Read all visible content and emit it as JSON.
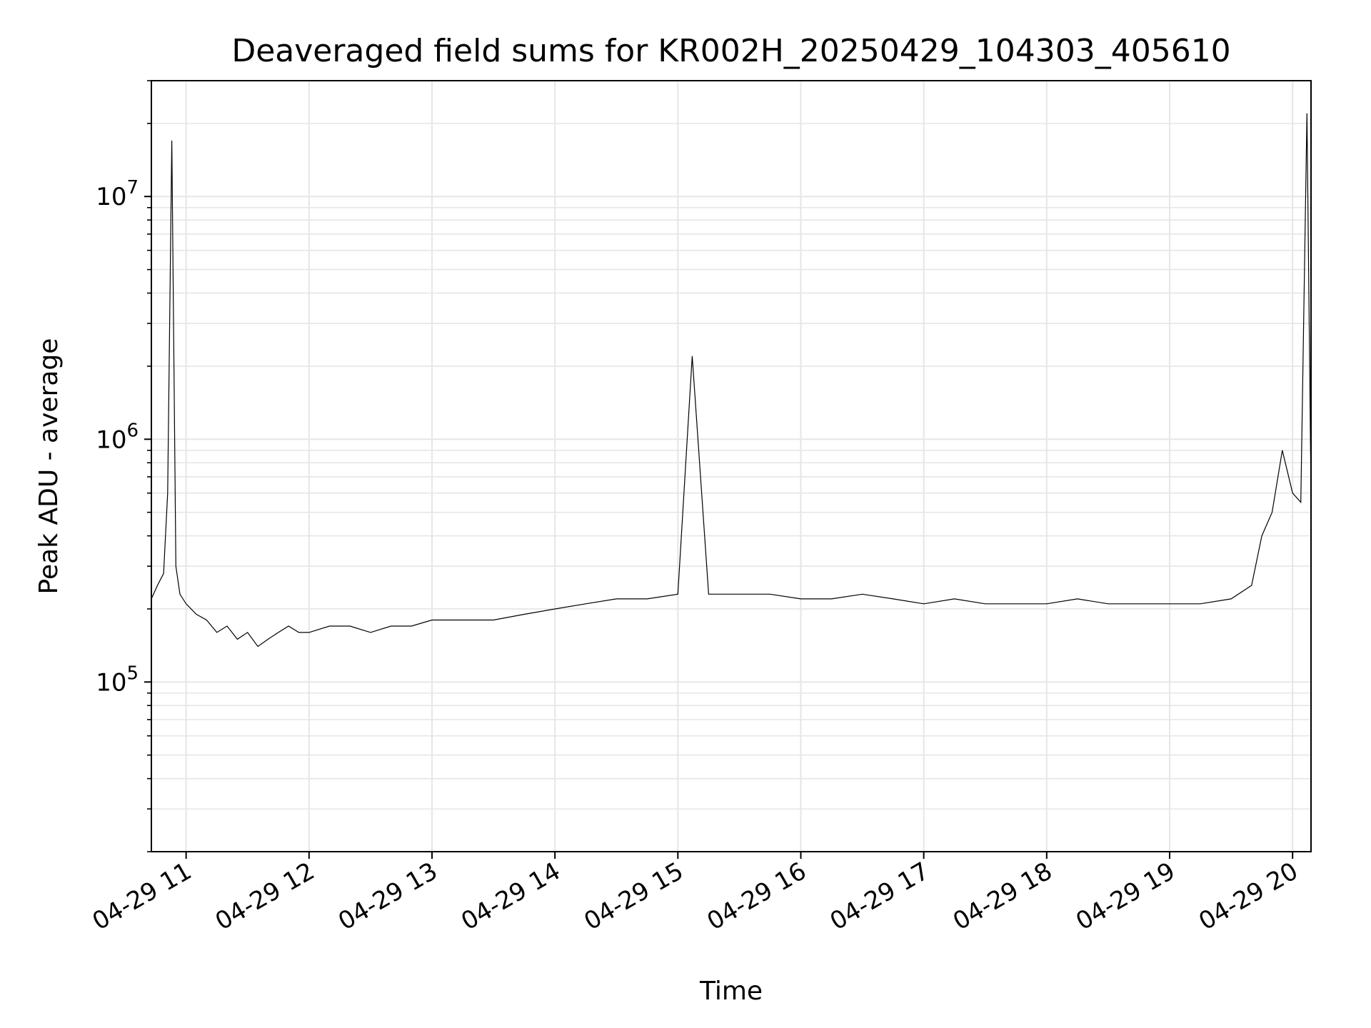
{
  "chart_data": {
    "type": "line",
    "title": "Deaveraged field sums for KR002H_20250429_104303_405610",
    "xlabel": "Time",
    "ylabel": "Peak ADU - average",
    "yscale": "log",
    "xlim": [
      "2025-04-29T10:43:03",
      "2025-04-29T20:09:00"
    ],
    "ylim": [
      20000,
      30000000
    ],
    "grid": true,
    "line_color": "#000000",
    "x_ticks": [
      {
        "label": "04-29 11",
        "value": "2025-04-29T11:00:00"
      },
      {
        "label": "04-29 12",
        "value": "2025-04-29T12:00:00"
      },
      {
        "label": "04-29 13",
        "value": "2025-04-29T13:00:00"
      },
      {
        "label": "04-29 14",
        "value": "2025-04-29T14:00:00"
      },
      {
        "label": "04-29 15",
        "value": "2025-04-29T15:00:00"
      },
      {
        "label": "04-29 16",
        "value": "2025-04-29T16:00:00"
      },
      {
        "label": "04-29 17",
        "value": "2025-04-29T17:00:00"
      },
      {
        "label": "04-29 18",
        "value": "2025-04-29T18:00:00"
      },
      {
        "label": "04-29 19",
        "value": "2025-04-29T19:00:00"
      },
      {
        "label": "04-29 20",
        "value": "2025-04-29T20:00:00"
      }
    ],
    "y_ticks": [
      {
        "base": "10",
        "exp": "5",
        "value": 100000
      },
      {
        "base": "10",
        "exp": "6",
        "value": 1000000
      },
      {
        "base": "10",
        "exp": "7",
        "value": 10000000
      }
    ],
    "series": [
      {
        "x": [
          "2025-04-29T10:43:03",
          "2025-04-29T10:46:00",
          "2025-04-29T10:49:00",
          "2025-04-29T10:51:00",
          "2025-04-29T10:53:00",
          "2025-04-29T10:55:00",
          "2025-04-29T10:57:00",
          "2025-04-29T11:00:00",
          "2025-04-29T11:05:00",
          "2025-04-29T11:10:00",
          "2025-04-29T11:15:00",
          "2025-04-29T11:20:00",
          "2025-04-29T11:25:00",
          "2025-04-29T11:30:00",
          "2025-04-29T11:35:00",
          "2025-04-29T11:40:00",
          "2025-04-29T11:45:00",
          "2025-04-29T11:50:00",
          "2025-04-29T11:55:00",
          "2025-04-29T12:00:00",
          "2025-04-29T12:10:00",
          "2025-04-29T12:20:00",
          "2025-04-29T12:30:00",
          "2025-04-29T12:40:00",
          "2025-04-29T12:50:00",
          "2025-04-29T13:00:00",
          "2025-04-29T13:15:00",
          "2025-04-29T13:30:00",
          "2025-04-29T13:45:00",
          "2025-04-29T14:00:00",
          "2025-04-29T14:15:00",
          "2025-04-29T14:30:00",
          "2025-04-29T14:45:00",
          "2025-04-29T15:00:00",
          "2025-04-29T15:07:00",
          "2025-04-29T15:15:00",
          "2025-04-29T15:30:00",
          "2025-04-29T15:45:00",
          "2025-04-29T16:00:00",
          "2025-04-29T16:15:00",
          "2025-04-29T16:30:00",
          "2025-04-29T16:45:00",
          "2025-04-29T17:00:00",
          "2025-04-29T17:15:00",
          "2025-04-29T17:30:00",
          "2025-04-29T17:45:00",
          "2025-04-29T18:00:00",
          "2025-04-29T18:15:00",
          "2025-04-29T18:30:00",
          "2025-04-29T18:45:00",
          "2025-04-29T19:00:00",
          "2025-04-29T19:15:00",
          "2025-04-29T19:30:00",
          "2025-04-29T19:40:00",
          "2025-04-29T19:45:00",
          "2025-04-29T19:50:00",
          "2025-04-29T19:55:00",
          "2025-04-29T20:00:00",
          "2025-04-29T20:04:00",
          "2025-04-29T20:07:00",
          "2025-04-29T20:09:00"
        ],
        "y": [
          220000,
          250000,
          280000,
          600000,
          17000000,
          300000,
          230000,
          210000,
          190000,
          180000,
          160000,
          170000,
          150000,
          160000,
          140000,
          150000,
          160000,
          170000,
          160000,
          160000,
          170000,
          170000,
          160000,
          170000,
          170000,
          180000,
          180000,
          180000,
          190000,
          200000,
          210000,
          220000,
          220000,
          230000,
          2200000,
          230000,
          230000,
          230000,
          220000,
          220000,
          230000,
          220000,
          210000,
          220000,
          210000,
          210000,
          210000,
          220000,
          210000,
          210000,
          210000,
          210000,
          220000,
          250000,
          400000,
          500000,
          900000,
          600000,
          550000,
          22000000,
          600000
        ]
      }
    ]
  }
}
